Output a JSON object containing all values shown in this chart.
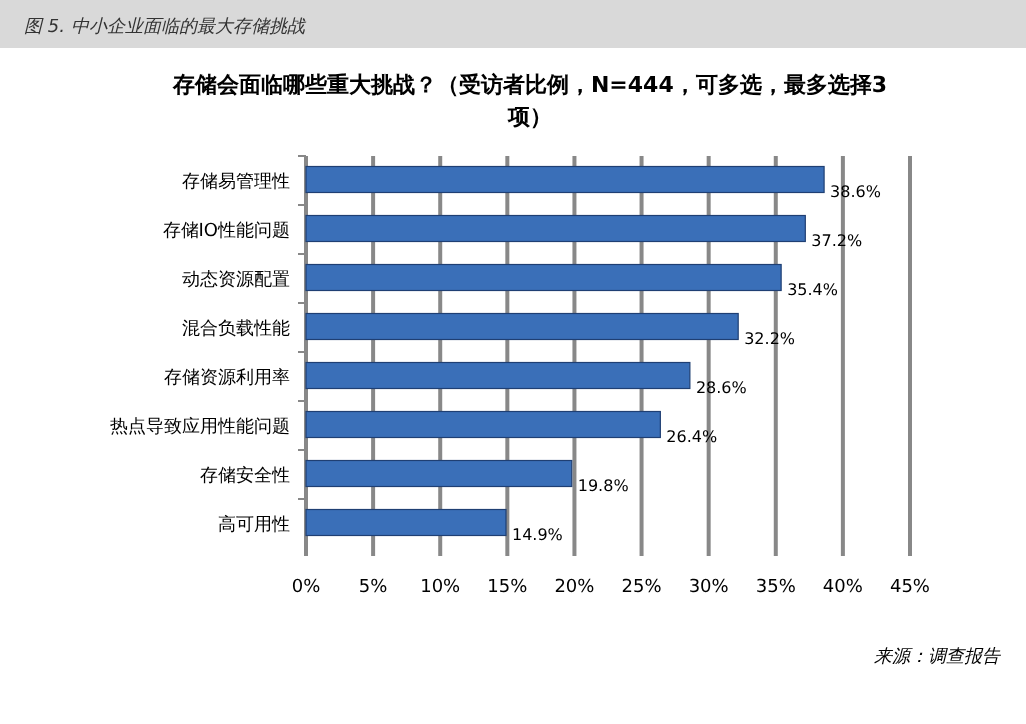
{
  "chart_data": {
    "type": "bar",
    "orientation": "horizontal",
    "subtitle": "图 5. 中小企业面临的最大存储挑战",
    "title": "存储会面临哪些重大挑战？（受访者比例，N=444，可多选，最多选择3项）",
    "categories": [
      "存储易管理性",
      "存储IO性能问题",
      "动态资源配置",
      "混合负载性能",
      "存储资源利用率",
      "热点导致应用性能问题",
      "存储安全性",
      "高可用性"
    ],
    "values": [
      38.6,
      37.2,
      35.4,
      32.2,
      28.6,
      26.4,
      19.8,
      14.9
    ],
    "value_labels": [
      "38.6%",
      "37.2%",
      "35.4%",
      "32.2%",
      "28.6%",
      "26.4%",
      "19.8%",
      "14.9%"
    ],
    "color": "#3a6fb8",
    "xlim": [
      0,
      45
    ],
    "xticks": [
      {
        "value": 0,
        "label": "0%"
      },
      {
        "value": 5,
        "label": "5%"
      },
      {
        "value": 10,
        "label": "10%"
      },
      {
        "value": 15,
        "label": "15%"
      },
      {
        "value": 20,
        "label": "20%"
      },
      {
        "value": 25,
        "label": "25%"
      },
      {
        "value": 30,
        "label": "30%"
      },
      {
        "value": 35,
        "label": "35%"
      },
      {
        "value": 40,
        "label": "40%"
      },
      {
        "value": 45,
        "label": "45%"
      }
    ],
    "grid": "x",
    "annotations": [
      "来源：调查报告"
    ]
  }
}
